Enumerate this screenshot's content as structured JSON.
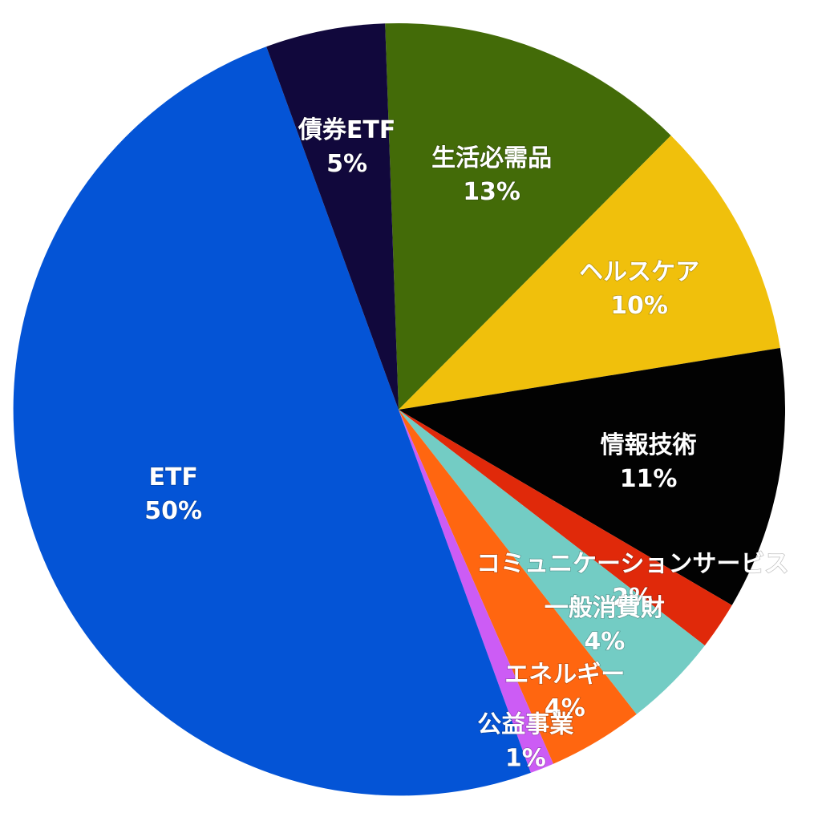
{
  "chart_data": {
    "type": "pie",
    "start_angle_deg": -2,
    "direction": "clockwise",
    "slices": [
      {
        "label": "生活必需品",
        "pct_label": "13%",
        "value": 13,
        "color": "#436B08"
      },
      {
        "label": "ヘルスケア",
        "pct_label": "10%",
        "value": 10,
        "color": "#F0C00C"
      },
      {
        "label": "情報技術",
        "pct_label": "11%",
        "value": 11,
        "color": "#020202"
      },
      {
        "label": "コミュニケーションサービス",
        "pct_label": "2%",
        "value": 2,
        "color": "#E0290A"
      },
      {
        "label": "一般消費財",
        "pct_label": "4%",
        "value": 4,
        "color": "#73CCC4"
      },
      {
        "label": "エネルギー",
        "pct_label": "4%",
        "value": 4,
        "color": "#FF6610"
      },
      {
        "label": "公益事業",
        "pct_label": "1%",
        "value": 1,
        "color": "#CC5CF5"
      },
      {
        "label": "ETF",
        "pct_label": "50%",
        "value": 50,
        "color": "#0454D6"
      },
      {
        "label": "債券ETF",
        "pct_label": "5%",
        "value": 5,
        "color": "#11083C"
      }
    ]
  }
}
